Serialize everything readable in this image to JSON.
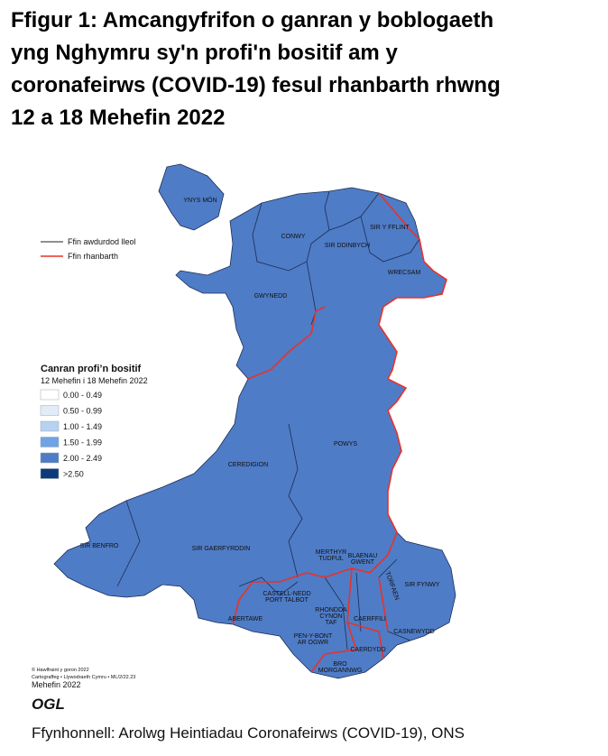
{
  "header": {
    "title": [
      "Ffigur 1: Amcangyfrifon o ganran y boblogaeth",
      "yng Nghymru sy'n profi'n bositif am y",
      "coronafeirws (COVID-19) fesul rhanbarth rhwng",
      "12 a 18 Mehefin 2022"
    ]
  },
  "map": {
    "region_fill": "#4f7cc6",
    "boundary_legend": [
      {
        "label": "Ffin awdurdod lleol",
        "color": "#222222"
      },
      {
        "label": "Ffin rhanbarth",
        "color": "#e8322a"
      }
    ],
    "legend": {
      "title": "Canran profi’n bositif",
      "subtitle": "12 Mehefin i 18 Mehefin 2022",
      "items": [
        {
          "label": "0.00 - 0.49",
          "color": "#ffffff"
        },
        {
          "label": "0.50 - 0.99",
          "color": "#e2ecf8"
        },
        {
          "label": "1.00 - 1.49",
          "color": "#b7d1f2"
        },
        {
          "label": "1.50 - 1.99",
          "color": "#6fa3e6"
        },
        {
          "label": "2.00 - 2.49",
          "color": "#4f7cc6"
        },
        {
          "label": ">2.50",
          "color": "#0d3a7a"
        }
      ]
    },
    "regions": [
      {
        "label": [
          "YNYS MÔN"
        ]
      },
      {
        "label": [
          "CONWY"
        ]
      },
      {
        "label": [
          "SIR DDINBYCH"
        ]
      },
      {
        "label": [
          "SIR Y FFLINT"
        ]
      },
      {
        "label": [
          "WRECSAM"
        ]
      },
      {
        "label": [
          "GWYNEDD"
        ]
      },
      {
        "label": [
          "POWYS"
        ]
      },
      {
        "label": [
          "CEREDIGION"
        ]
      },
      {
        "label": [
          "SIR BENFRO"
        ]
      },
      {
        "label": [
          "SIR GAERFYRDDIN"
        ]
      },
      {
        "label": [
          "MERTHYR",
          "TUDFUL"
        ]
      },
      {
        "label": [
          "BLAENAU",
          "GWENT"
        ]
      },
      {
        "label": [
          "SIR FYNWY"
        ]
      },
      {
        "label": [
          "TORFAEN"
        ]
      },
      {
        "label": [
          "CASTELL-NEDD",
          "PORT TALBOT"
        ]
      },
      {
        "label": [
          "RHONDDA",
          "CYNON",
          "TAF"
        ]
      },
      {
        "label": [
          "CAERFFILI"
        ]
      },
      {
        "label": [
          "CASNEWYDD"
        ]
      },
      {
        "label": [
          "ABERTAWE"
        ]
      },
      {
        "label": [
          "PEN-Y-BONT",
          "AR OGWR"
        ]
      },
      {
        "label": [
          "CAERDYDD"
        ]
      },
      {
        "label": [
          "BRO",
          "MORGANNWG"
        ]
      }
    ],
    "credits": [
      "© Hawlfraint y goron 2022",
      "Cartograffeg • Llywodraeth Cymru • ML/2/22.23",
      "Mehefin 2022"
    ],
    "logo": "OGL"
  },
  "footer": {
    "source": "Ffynhonnell: Arolwg Heintiadau Coronafeirws (COVID-19), ONS"
  }
}
